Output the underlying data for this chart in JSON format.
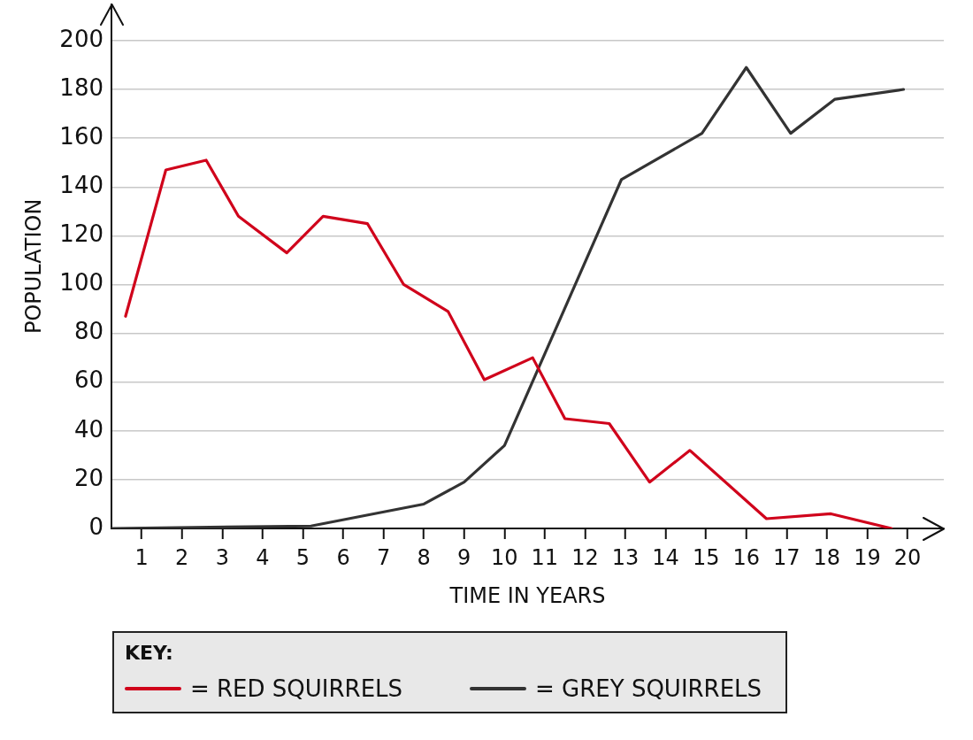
{
  "chart_data": {
    "type": "line",
    "xlabel": "TIME IN YEARS",
    "ylabel": "POPULATION",
    "xlim": [
      0.25,
      20.9
    ],
    "xticks": [
      1,
      2,
      3,
      4,
      5,
      6,
      7,
      8,
      9,
      10,
      11,
      12,
      13,
      14,
      15,
      16,
      17,
      18,
      19,
      20
    ],
    "ylim": [
      0,
      215
    ],
    "yticks": [
      0,
      20,
      40,
      60,
      80,
      100,
      120,
      140,
      160,
      180,
      200
    ],
    "grid": "y",
    "legend": "bottom",
    "legend_title": "KEY:",
    "marker": "none",
    "line_style": "solid",
    "series": [
      {
        "name": "= RED SQUIRRELS",
        "color": "#d0021b",
        "x": [
          0.6,
          1.6,
          2.6,
          3.4,
          4.6,
          5.5,
          6.6,
          7.5,
          8.6,
          9.5,
          10.7,
          11.5,
          12.6,
          13.6,
          14.6,
          16.5,
          18.1,
          19.6
        ],
        "values": [
          87,
          147,
          151,
          128,
          113,
          128,
          125,
          100,
          89,
          61,
          70,
          45,
          43,
          19,
          32,
          4,
          6,
          0
        ]
      },
      {
        "name": "= GREY SQUIRRELS",
        "color": "#333333",
        "x": [
          0.25,
          5.2,
          8.0,
          9.0,
          10.0,
          12.9,
          14.9,
          16.0,
          17.1,
          18.2,
          19.9
        ],
        "values": [
          0,
          1,
          10,
          19,
          34,
          143,
          162,
          189,
          162,
          176,
          180
        ]
      }
    ]
  }
}
